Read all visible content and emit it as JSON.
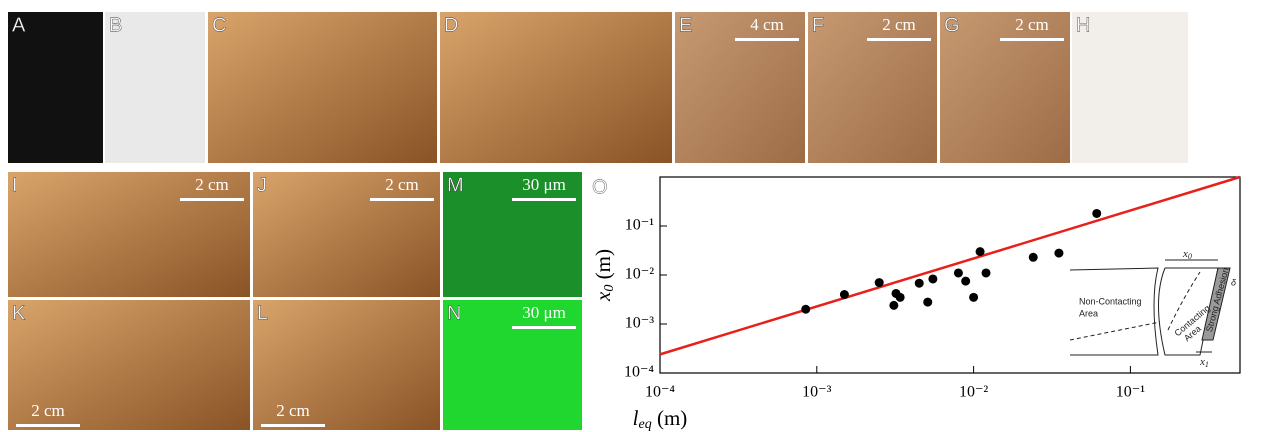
{
  "panels": [
    {
      "label": "A"
    },
    {
      "label": "B"
    },
    {
      "label": "C"
    },
    {
      "label": "D"
    },
    {
      "label": "E",
      "scale": "4 cm"
    },
    {
      "label": "F",
      "scale": "2 cm"
    },
    {
      "label": "G",
      "scale": "2 cm"
    },
    {
      "label": "H"
    },
    {
      "label": "I",
      "scale": "2 cm"
    },
    {
      "label": "J",
      "scale": "2 cm"
    },
    {
      "label": "M",
      "scale": "30 μm"
    },
    {
      "label": "K",
      "scale": "2 cm"
    },
    {
      "label": "L",
      "scale": "2 cm"
    },
    {
      "label": "N",
      "scale": "30 μm"
    }
  ],
  "chart_data": {
    "type": "scatter",
    "panel_label": "O",
    "xlabel": {
      "main": "l",
      "sub": "eq",
      "unit": " (m)"
    },
    "ylabel": {
      "main": "x",
      "sub": "0",
      "unit": " (m)"
    },
    "log_x": true,
    "log_y": true,
    "xlim": [
      0.0001,
      0.5
    ],
    "ylim": [
      0.0001,
      1
    ],
    "xticks": [
      {
        "value": 0.0001,
        "label": "10⁻⁴"
      },
      {
        "value": 0.001,
        "label": "10⁻³"
      },
      {
        "value": 0.01,
        "label": "10⁻²"
      },
      {
        "value": 0.1,
        "label": "10⁻¹"
      }
    ],
    "yticks": [
      {
        "value": 0.0001,
        "label": "10⁻⁴"
      },
      {
        "value": 0.001,
        "label": "10⁻³"
      },
      {
        "value": 0.01,
        "label": "10⁻²"
      },
      {
        "value": 0.1,
        "label": "10⁻¹"
      }
    ],
    "color": "#000000",
    "x": [
      0.00085,
      0.0015,
      0.0025,
      0.0032,
      0.0031,
      0.0034,
      0.0045,
      0.0051,
      0.0055,
      0.008,
      0.0089,
      0.01,
      0.011,
      0.012,
      0.024,
      0.035,
      0.061
    ],
    "y": [
      0.002,
      0.004,
      0.007,
      0.0042,
      0.0024,
      0.0035,
      0.0068,
      0.0028,
      0.0083,
      0.011,
      0.0075,
      0.0035,
      0.03,
      0.011,
      0.023,
      0.028,
      0.18
    ],
    "fit_line": {
      "x": [
        0.0001,
        0.5
      ],
      "y": [
        0.00024,
        1
      ],
      "color": "#e8201c"
    },
    "inset": {
      "non_contacting": [
        "Non-Contacting",
        "Area"
      ],
      "contacting": [
        "Contacting",
        "Area"
      ],
      "strong": "Strong Adhesion",
      "x0": {
        "main": "x",
        "sub": "0"
      },
      "x1": {
        "main": "x",
        "sub": "1"
      },
      "delta": "δ"
    }
  }
}
